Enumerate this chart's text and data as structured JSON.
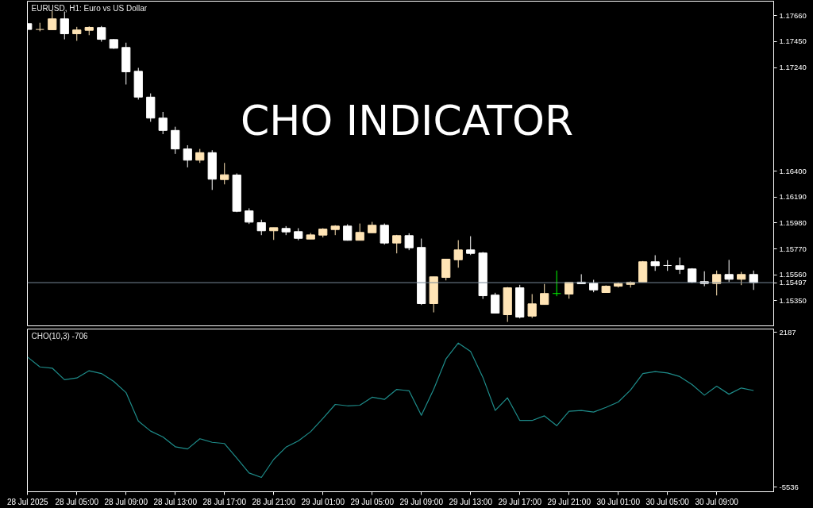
{
  "chart_data": [
    {
      "type": "candlestick",
      "title": "CHO INDICATOR",
      "subtitle": "EURUSD, H1: Euro vs US Dollar",
      "x": [
        "2025-07-28T01:00",
        "2025-07-28T02:00",
        "2025-07-28T03:00",
        "2025-07-28T04:00",
        "2025-07-28T05:00",
        "2025-07-28T06:00",
        "2025-07-28T07:00",
        "2025-07-28T08:00",
        "2025-07-28T09:00",
        "2025-07-28T10:00",
        "2025-07-28T11:00",
        "2025-07-28T12:00",
        "2025-07-28T13:00",
        "2025-07-28T14:00",
        "2025-07-28T15:00",
        "2025-07-28T16:00",
        "2025-07-28T17:00",
        "2025-07-28T18:00",
        "2025-07-28T19:00",
        "2025-07-28T20:00",
        "2025-07-28T21:00",
        "2025-07-28T22:00",
        "2025-07-28T23:00",
        "2025-07-29T00:00",
        "2025-07-29T01:00",
        "2025-07-29T02:00",
        "2025-07-29T03:00",
        "2025-07-29T04:00",
        "2025-07-29T05:00",
        "2025-07-29T06:00",
        "2025-07-29T07:00",
        "2025-07-29T08:00",
        "2025-07-29T09:00",
        "2025-07-29T10:00",
        "2025-07-29T11:00",
        "2025-07-29T12:00",
        "2025-07-29T13:00",
        "2025-07-29T14:00",
        "2025-07-29T15:00",
        "2025-07-29T16:00",
        "2025-07-29T17:00",
        "2025-07-29T18:00",
        "2025-07-29T19:00",
        "2025-07-29T20:00",
        "2025-07-29T21:00",
        "2025-07-29T22:00",
        "2025-07-29T23:00",
        "2025-07-30T00:00",
        "2025-07-30T01:00",
        "2025-07-30T02:00",
        "2025-07-30T03:00",
        "2025-07-30T04:00",
        "2025-07-30T05:00",
        "2025-07-30T06:00",
        "2025-07-30T07:00",
        "2025-07-30T08:00",
        "2025-07-30T09:00",
        "2025-07-30T10:00",
        "2025-07-30T11:00",
        "2025-07-30T12:00"
      ],
      "ohlc": [
        [
          1.17595,
          1.17595,
          1.17548,
          1.17548
        ],
        [
          1.17548,
          1.17602,
          1.17533,
          1.17548
        ],
        [
          1.17546,
          1.17698,
          1.17546,
          1.17634
        ],
        [
          1.17634,
          1.17693,
          1.17468,
          1.17513
        ],
        [
          1.17513,
          1.17569,
          1.17456,
          1.17544
        ],
        [
          1.17541,
          1.17573,
          1.17502,
          1.17565
        ],
        [
          1.17563,
          1.17576,
          1.17449,
          1.17468
        ],
        [
          1.17466,
          1.1747,
          1.17391,
          1.17396
        ],
        [
          1.17402,
          1.17441,
          1.17102,
          1.17205
        ],
        [
          1.17209,
          1.17237,
          1.1698,
          1.17
        ],
        [
          1.17,
          1.1703,
          1.168,
          1.1683
        ],
        [
          1.1683,
          1.1688,
          1.167,
          1.1673
        ],
        [
          1.1673,
          1.1676,
          1.1654,
          1.1658
        ],
        [
          1.1658,
          1.1661,
          1.16431,
          1.16489
        ],
        [
          1.16489,
          1.1658,
          1.16467,
          1.1655
        ],
        [
          1.1655,
          1.1657,
          1.16248,
          1.16335
        ],
        [
          1.16332,
          1.16467,
          1.16293,
          1.16371
        ],
        [
          1.16369,
          1.16382,
          1.16068,
          1.16075
        ],
        [
          1.16078,
          1.16099,
          1.15972,
          1.15987
        ],
        [
          1.15983,
          1.16007,
          1.15882,
          1.15917
        ],
        [
          1.15917,
          1.15942,
          1.15843,
          1.15942
        ],
        [
          1.15936,
          1.15955,
          1.15882,
          1.15908
        ],
        [
          1.1591,
          1.15938,
          1.1584,
          1.15856
        ],
        [
          1.1585,
          1.15899,
          1.1585,
          1.15884
        ],
        [
          1.15882,
          1.15938,
          1.15863,
          1.15931
        ],
        [
          1.15927,
          1.15962,
          1.15882,
          1.15955
        ],
        [
          1.15955,
          1.1597,
          1.15837,
          1.1584
        ],
        [
          1.1584,
          1.15976,
          1.1584,
          1.15904
        ],
        [
          1.15901,
          1.15989,
          1.15901,
          1.15962
        ],
        [
          1.15962,
          1.15976,
          1.15805,
          1.15818
        ],
        [
          1.15818,
          1.15884,
          1.15734,
          1.15878
        ],
        [
          1.15878,
          1.15897,
          1.1576,
          1.15779
        ],
        [
          1.15782,
          1.15854,
          1.15316,
          1.15327
        ],
        [
          1.15327,
          1.15544,
          1.15256,
          1.15544
        ],
        [
          1.15539,
          1.15687,
          1.15515,
          1.15687
        ],
        [
          1.15682,
          1.15841,
          1.15618,
          1.15762
        ],
        [
          1.15762,
          1.15873,
          1.15721,
          1.15734
        ],
        [
          1.15737,
          1.15745,
          1.15365,
          1.15391
        ],
        [
          1.15396,
          1.15415,
          1.1525,
          1.1525
        ],
        [
          1.15237,
          1.15461,
          1.15179,
          1.15455
        ],
        [
          1.15455,
          1.15479,
          1.15207,
          1.15218
        ],
        [
          1.15226,
          1.15404,
          1.15211,
          1.15325
        ],
        [
          1.1532,
          1.15486,
          1.1532,
          1.15409
        ],
        [
          1.15409,
          1.15595,
          1.15387,
          1.15409
        ],
        [
          1.15404,
          1.15499,
          1.15367,
          1.15499
        ],
        [
          1.15501,
          1.15565,
          1.15486,
          1.15488
        ],
        [
          1.15492,
          1.1552,
          1.15419,
          1.15438
        ],
        [
          1.15417,
          1.15475,
          1.15417,
          1.15468
        ],
        [
          1.15468,
          1.15499,
          1.15457,
          1.1549
        ],
        [
          1.15483,
          1.15507,
          1.15457,
          1.15499
        ],
        [
          1.15502,
          1.15672,
          1.15502,
          1.15666
        ],
        [
          1.15666,
          1.15719,
          1.15592,
          1.15634
        ],
        [
          1.15636,
          1.15679,
          1.15592,
          1.15636
        ],
        [
          1.15634,
          1.157,
          1.15567,
          1.15605
        ],
        [
          1.15608,
          1.15614,
          1.15494,
          1.15502
        ],
        [
          1.15505,
          1.15589,
          1.15468,
          1.1549
        ],
        [
          1.1549,
          1.15595,
          1.15393,
          1.15563
        ],
        [
          1.15563,
          1.15681,
          1.15502,
          1.15524
        ],
        [
          1.15524,
          1.15584,
          1.15477,
          1.15563
        ],
        [
          1.15563,
          1.15595,
          1.15438,
          1.15497
        ]
      ],
      "colors": [
        "#ffffff",
        "#ffe4b5",
        "#ffe4b5",
        "#ffffff",
        "#ffe4b5",
        "#ffe4b5",
        "#ffffff",
        "#ffffff",
        "#ffffff",
        "#ffffff",
        "#ffffff",
        "#ffffff",
        "#ffffff",
        "#ffffff",
        "#ffe4b5",
        "#ffffff",
        "#ffe4b5",
        "#ffffff",
        "#ffffff",
        "#ffffff",
        "#ffe4b5",
        "#ffffff",
        "#ffffff",
        "#ffe4b5",
        "#ffe4b5",
        "#ffe4b5",
        "#ffffff",
        "#ffe4b5",
        "#ffe4b5",
        "#ffffff",
        "#ffe4b5",
        "#ffffff",
        "#ffffff",
        "#ffe4b5",
        "#ffe4b5",
        "#ffe4b5",
        "#ffffff",
        "#ffffff",
        "#ffffff",
        "#ffe4b5",
        "#ffffff",
        "#ffe4b5",
        "#ffe4b5",
        "#00ff00",
        "#ffe4b5",
        "#ffffff",
        "#ffffff",
        "#ffe4b5",
        "#ffe4b5",
        "#ffe4b5",
        "#ffe4b5",
        "#ffffff",
        "#ffffff",
        "#ffffff",
        "#ffffff",
        "#ffffff",
        "#ffe4b5",
        "#ffffff",
        "#ffe4b5",
        "#ffffff"
      ],
      "xlim": [
        "2025-07-28T00:59",
        "2025-07-30T13:38"
      ],
      "ylim": [
        1.15147,
        1.17777
      ],
      "yticks": [
        {
          "value": 1.1535,
          "label": "1.15350"
        },
        {
          "value": 1.1556,
          "label": "1.15560"
        },
        {
          "value": 1.1577,
          "label": "1.15770"
        },
        {
          "value": 1.1598,
          "label": "1.15980"
        },
        {
          "value": 1.1619,
          "label": "1.16190"
        },
        {
          "value": 1.164,
          "label": "1.16400"
        },
        {
          "value": 1.1724,
          "label": "1.17240"
        },
        {
          "value": 1.1745,
          "label": "1.17450"
        },
        {
          "value": 1.1766,
          "label": "1.17660"
        }
      ],
      "ref_lines": [
        {
          "axis": "y",
          "value": 1.15497,
          "label": "1.15497",
          "color": "#778899"
        }
      ],
      "tick_labels": "y"
    },
    {
      "type": "line",
      "title": "CHO(10,3) -706",
      "x": [
        "2025-07-28T01:00",
        "2025-07-28T02:00",
        "2025-07-28T03:00",
        "2025-07-28T04:00",
        "2025-07-28T05:00",
        "2025-07-28T06:00",
        "2025-07-28T07:00",
        "2025-07-28T08:00",
        "2025-07-28T09:00",
        "2025-07-28T10:00",
        "2025-07-28T11:00",
        "2025-07-28T12:00",
        "2025-07-28T13:00",
        "2025-07-28T14:00",
        "2025-07-28T15:00",
        "2025-07-28T16:00",
        "2025-07-28T17:00",
        "2025-07-28T18:00",
        "2025-07-28T19:00",
        "2025-07-28T20:00",
        "2025-07-28T21:00",
        "2025-07-28T22:00",
        "2025-07-28T23:00",
        "2025-07-29T00:00",
        "2025-07-29T01:00",
        "2025-07-29T02:00",
        "2025-07-29T03:00",
        "2025-07-29T04:00",
        "2025-07-29T05:00",
        "2025-07-29T06:00",
        "2025-07-29T07:00",
        "2025-07-29T08:00",
        "2025-07-29T09:00",
        "2025-07-29T10:00",
        "2025-07-29T11:00",
        "2025-07-29T12:00",
        "2025-07-29T13:00",
        "2025-07-29T14:00",
        "2025-07-29T15:00",
        "2025-07-29T16:00",
        "2025-07-29T17:00",
        "2025-07-29T18:00",
        "2025-07-29T19:00",
        "2025-07-29T20:00",
        "2025-07-29T21:00",
        "2025-07-29T22:00",
        "2025-07-29T23:00",
        "2025-07-30T00:00",
        "2025-07-30T01:00",
        "2025-07-30T02:00",
        "2025-07-30T03:00",
        "2025-07-30T04:00",
        "2025-07-30T05:00",
        "2025-07-30T06:00",
        "2025-07-30T07:00",
        "2025-07-30T08:00",
        "2025-07-30T09:00",
        "2025-07-30T10:00",
        "2025-07-30T11:00",
        "2025-07-30T12:00"
      ],
      "values": [
        960,
        470,
        410,
        -170,
        -80,
        280,
        140,
        -250,
        -810,
        -2230,
        -2730,
        -3020,
        -3510,
        -3620,
        -3110,
        -3290,
        -3350,
        -4080,
        -4820,
        -5040,
        -4140,
        -3530,
        -3220,
        -2760,
        -2100,
        -1400,
        -1470,
        -1440,
        -1040,
        -1150,
        -650,
        -720,
        -1940,
        -650,
        870,
        1660,
        1240,
        -50,
        -1700,
        -1070,
        -2200,
        -2200,
        -1970,
        -2460,
        -1740,
        -1700,
        -1780,
        -1550,
        -1280,
        -680,
        140,
        240,
        170,
        -10,
        -410,
        -940,
        -490,
        -890,
        -580,
        -706
      ],
      "color": "#1e8c8a",
      "xlim": [
        "2025-07-28T00:59",
        "2025-07-30T13:38"
      ],
      "ylim": [
        -5754,
        2361
      ],
      "yticks": [
        -5536,
        2187
      ],
      "xticks": [
        {
          "value": "2025-07-28T01:00",
          "label": "28 Jul 2025"
        },
        {
          "value": "2025-07-28T05:00",
          "label": "28 Jul 05:00"
        },
        {
          "value": "2025-07-28T09:00",
          "label": "28 Jul 09:00"
        },
        {
          "value": "2025-07-28T13:00",
          "label": "28 Jul 13:00"
        },
        {
          "value": "2025-07-28T17:00",
          "label": "28 Jul 17:00"
        },
        {
          "value": "2025-07-28T21:00",
          "label": "28 Jul 21:00"
        },
        {
          "value": "2025-07-29T01:00",
          "label": "29 Jul 01:00"
        },
        {
          "value": "2025-07-29T05:00",
          "label": "29 Jul 05:00"
        },
        {
          "value": "2025-07-29T09:00",
          "label": "29 Jul 09:00"
        },
        {
          "value": "2025-07-29T13:00",
          "label": "29 Jul 13:00"
        },
        {
          "value": "2025-07-29T17:00",
          "label": "29 Jul 17:00"
        },
        {
          "value": "2025-07-29T21:00",
          "label": "29 Jul 21:00"
        },
        {
          "value": "2025-07-30T01:00",
          "label": "30 Jul 01:00"
        },
        {
          "value": "2025-07-30T05:00",
          "label": "30 Jul 05:00"
        },
        {
          "value": "2025-07-30T09:00",
          "label": "30 Jul 09:00"
        }
      ]
    }
  ]
}
